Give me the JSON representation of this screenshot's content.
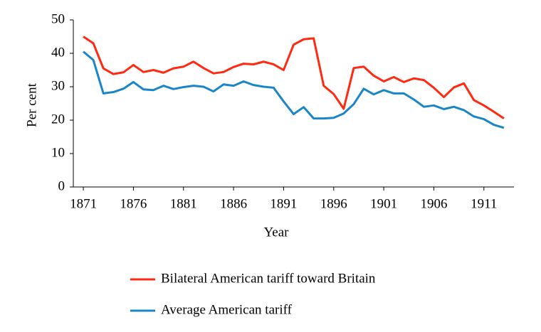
{
  "chart_data": {
    "type": "line",
    "x_label": "Year",
    "y_label": "Per cent",
    "x": [
      1871,
      1872,
      1873,
      1874,
      1875,
      1876,
      1877,
      1878,
      1879,
      1880,
      1881,
      1882,
      1883,
      1884,
      1885,
      1886,
      1887,
      1888,
      1889,
      1890,
      1891,
      1892,
      1893,
      1894,
      1895,
      1896,
      1897,
      1898,
      1899,
      1900,
      1901,
      1902,
      1903,
      1904,
      1905,
      1906,
      1907,
      1908,
      1909,
      1910,
      1911,
      1912,
      1913
    ],
    "series": [
      {
        "name": "Bilateral American tariff toward Britain",
        "color": "#ff2a12",
        "values": [
          45,
          43,
          35.5,
          33.8,
          34.3,
          36.5,
          34.4,
          35,
          34.2,
          35.5,
          36,
          37.5,
          35.6,
          34,
          34.4,
          35.9,
          36.9,
          36.7,
          37.5,
          36.7,
          35,
          42.6,
          44.2,
          44.5,
          30.3,
          27.8,
          23.4,
          35.6,
          36,
          33.3,
          31.6,
          32.9,
          31.4,
          32.5,
          32,
          29.7,
          26.9,
          29.8,
          31,
          26,
          24.4,
          22.5,
          20.5
        ]
      },
      {
        "name": "Average American tariff",
        "color": "#1a86c8",
        "values": [
          40.5,
          38,
          28,
          28.4,
          29.4,
          31.4,
          29.2,
          29,
          30.3,
          29.3,
          29.9,
          30.3,
          30,
          28.6,
          30.7,
          30.3,
          31.6,
          30.5,
          30,
          29.7,
          25.6,
          21.8,
          23.9,
          20.5,
          20.5,
          20.7,
          22,
          24.8,
          29.4,
          27.7,
          29,
          28,
          28,
          26.2,
          24,
          24.4,
          23.3,
          24,
          23,
          21.1,
          20.3,
          18.6,
          17.7
        ]
      }
    ],
    "xlim": [
      1870,
      1914
    ],
    "xticks": [
      1871,
      1876,
      1881,
      1886,
      1891,
      1896,
      1901,
      1906,
      1911
    ],
    "ylim": [
      0,
      50
    ],
    "yticks": [
      0,
      10,
      20,
      30,
      40,
      50
    ],
    "grid": false,
    "legend": "bottom"
  }
}
